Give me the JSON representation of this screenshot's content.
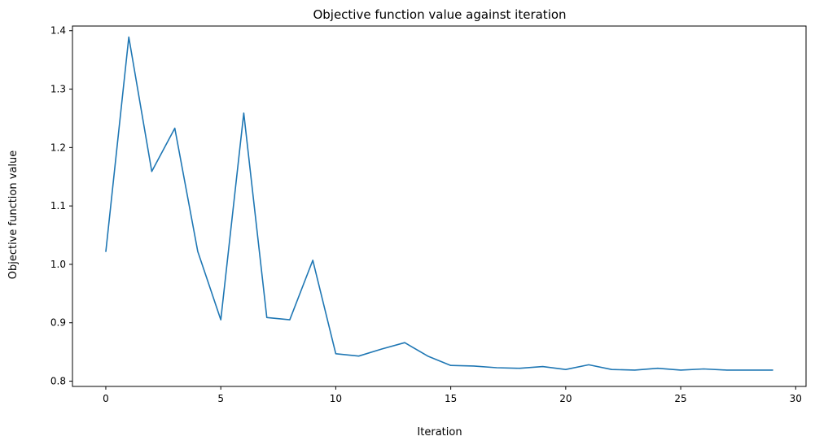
{
  "chart_data": {
    "type": "line",
    "title": "Objective function value against iteration",
    "xlabel": "Iteration",
    "ylabel": "Objective function value",
    "xlim": [
      -1.45,
      30.45
    ],
    "ylim": [
      0.791,
      1.408
    ],
    "xticks": [
      0,
      5,
      10,
      15,
      20,
      25,
      30
    ],
    "yticks": [
      0.8,
      0.9,
      1.0,
      1.1,
      1.2,
      1.3,
      1.4
    ],
    "xtick_labels": [
      "0",
      "5",
      "10",
      "15",
      "20",
      "25",
      "30"
    ],
    "ytick_labels": [
      "0.8",
      "0.9",
      "1.0",
      "1.1",
      "1.2",
      "1.3",
      "1.4"
    ],
    "grid": false,
    "legend": "none",
    "series": [
      {
        "color": "#1f77b4",
        "x": [
          0,
          1,
          2,
          3,
          4,
          5,
          6,
          7,
          8,
          9,
          10,
          11,
          12,
          13,
          14,
          15,
          16,
          17,
          18,
          19,
          20,
          21,
          22,
          23,
          24,
          25,
          26,
          27,
          28,
          29
        ],
        "values": [
          1.022,
          1.389,
          1.159,
          1.233,
          1.022,
          0.905,
          1.259,
          0.909,
          0.905,
          1.007,
          0.847,
          0.843,
          0.855,
          0.866,
          0.843,
          0.827,
          0.826,
          0.823,
          0.822,
          0.825,
          0.82,
          0.828,
          0.82,
          0.819,
          0.822,
          0.819,
          0.821,
          0.819,
          0.819,
          0.819
        ]
      }
    ]
  }
}
